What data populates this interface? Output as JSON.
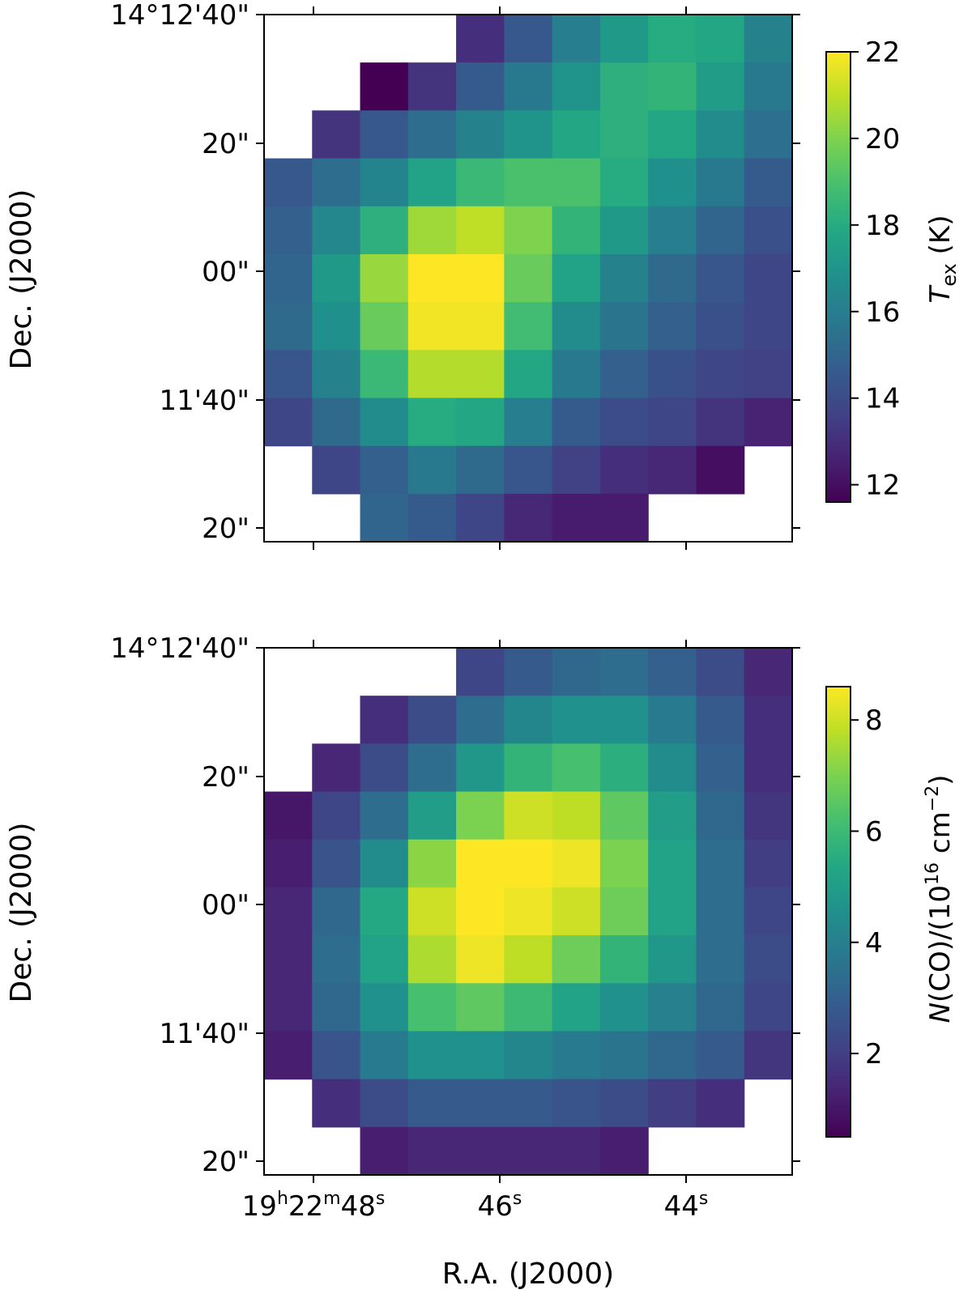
{
  "chart_data": [
    {
      "type": "heatmap",
      "colormap": "viridis",
      "colorbar_label": "T_ex (K)",
      "colorbar_label_parts": {
        "symbol": "T",
        "subscript": "ex",
        "unit": " (K)"
      },
      "colorbar_range": [
        11.6,
        22
      ],
      "colorbar_ticks": [
        12,
        14,
        16,
        18,
        20,
        22
      ],
      "ylabel": "Dec. (J2000)",
      "xlabel": "",
      "ra_ticks": [
        {
          "base": "19",
          "sup1": "h",
          "mid": "22",
          "sup2": "m",
          "rest": "48",
          "sup3": "s"
        },
        {
          "base": "",
          "sup1": "",
          "mid": "",
          "sup2": "",
          "rest": "46",
          "sup3": "s"
        },
        {
          "base": "",
          "sup1": "",
          "mid": "",
          "sup2": "",
          "rest": "44",
          "sup3": "s"
        }
      ],
      "ra_tick_labels_visible": false,
      "dec_ticks": [
        "14°12'40\"",
        "20\"",
        "00\"",
        "11'40\"",
        "20\""
      ],
      "grid": [
        [
          null,
          null,
          null,
          null,
          13.0,
          14.5,
          16.0,
          17.2,
          18.0,
          17.8,
          16.2
        ],
        [
          null,
          null,
          11.6,
          13.2,
          14.6,
          15.8,
          17.0,
          18.2,
          18.4,
          17.4,
          15.8
        ],
        [
          null,
          13.2,
          14.5,
          15.3,
          16.2,
          17.0,
          17.8,
          18.2,
          17.8,
          16.6,
          15.4
        ],
        [
          14.5,
          15.3,
          16.3,
          17.6,
          18.6,
          19.0,
          19.0,
          18.0,
          16.8,
          15.8,
          14.6
        ],
        [
          14.8,
          16.4,
          18.2,
          20.5,
          21.0,
          20.0,
          18.4,
          17.2,
          16.0,
          15.0,
          14.2
        ],
        [
          15.0,
          17.2,
          20.4,
          22.0,
          22.0,
          19.6,
          17.6,
          16.2,
          15.2,
          14.4,
          13.8
        ],
        [
          15.2,
          16.8,
          19.6,
          21.8,
          21.8,
          18.8,
          16.6,
          15.6,
          14.8,
          14.2,
          13.8
        ],
        [
          14.4,
          16.2,
          18.6,
          20.8,
          20.8,
          17.8,
          15.8,
          14.8,
          14.2,
          13.8,
          13.6
        ],
        [
          13.8,
          15.2,
          16.6,
          18.0,
          17.8,
          16.0,
          14.6,
          14.0,
          13.8,
          13.2,
          12.6
        ],
        [
          null,
          13.8,
          14.8,
          15.8,
          15.2,
          14.4,
          13.6,
          13.0,
          12.8,
          12.0,
          null
        ],
        [
          null,
          null,
          15.0,
          14.6,
          13.8,
          12.8,
          12.4,
          12.4,
          null,
          null,
          null
        ]
      ]
    },
    {
      "type": "heatmap",
      "colormap": "viridis",
      "colorbar_label": "N(CO)/(10^16 cm^-2)",
      "colorbar_label_parts": {
        "symbol": "N",
        "pre": "(CO)/(10",
        "exp1": "16",
        "mid": " cm",
        "exp2": "−2",
        "post": ")"
      },
      "colorbar_range": [
        0.5,
        8.6
      ],
      "colorbar_ticks": [
        2,
        4,
        6,
        8
      ],
      "ylabel": "Dec. (J2000)",
      "xlabel": "R.A. (J2000)",
      "ra_ticks": [
        {
          "base": "19",
          "sup1": "h",
          "mid": "22",
          "sup2": "m",
          "rest": "48",
          "sup3": "s"
        },
        {
          "base": "",
          "sup1": "",
          "mid": "",
          "sup2": "",
          "rest": "46",
          "sup3": "s"
        },
        {
          "base": "",
          "sup1": "",
          "mid": "",
          "sup2": "",
          "rest": "44",
          "sup3": "s"
        }
      ],
      "ra_tick_labels_visible": true,
      "dec_ticks": [
        "14°12'40\"",
        "20\"",
        "00\"",
        "11'40\"",
        "20\""
      ],
      "grid": [
        [
          null,
          null,
          null,
          null,
          2.2,
          2.8,
          3.2,
          3.4,
          3.0,
          2.4,
          1.4
        ],
        [
          null,
          null,
          1.6,
          2.4,
          3.4,
          4.2,
          4.6,
          4.6,
          3.8,
          2.8,
          1.6
        ],
        [
          null,
          1.4,
          2.4,
          3.4,
          4.8,
          5.8,
          6.2,
          5.6,
          4.4,
          3.0,
          1.6
        ],
        [
          1.0,
          2.2,
          3.4,
          5.0,
          7.0,
          8.0,
          7.8,
          6.6,
          5.0,
          3.2,
          1.8
        ],
        [
          1.2,
          2.6,
          4.4,
          7.2,
          8.6,
          8.6,
          8.4,
          7.0,
          5.2,
          3.4,
          2.0
        ],
        [
          1.4,
          3.2,
          5.4,
          8.0,
          8.6,
          8.4,
          8.0,
          6.8,
          5.2,
          3.4,
          2.2
        ],
        [
          1.4,
          3.4,
          5.2,
          7.6,
          8.4,
          7.8,
          6.8,
          5.8,
          4.8,
          3.4,
          2.4
        ],
        [
          1.4,
          3.2,
          4.6,
          6.2,
          6.6,
          6.0,
          5.2,
          4.6,
          4.0,
          3.2,
          2.2
        ],
        [
          1.2,
          2.6,
          3.8,
          4.6,
          4.6,
          4.2,
          3.8,
          3.6,
          3.2,
          2.8,
          1.8
        ],
        [
          null,
          1.6,
          2.4,
          2.8,
          2.8,
          2.8,
          2.6,
          2.4,
          2.0,
          1.6,
          null
        ],
        [
          null,
          null,
          1.2,
          1.4,
          1.4,
          1.4,
          1.4,
          1.2,
          null,
          null,
          null
        ]
      ]
    }
  ]
}
